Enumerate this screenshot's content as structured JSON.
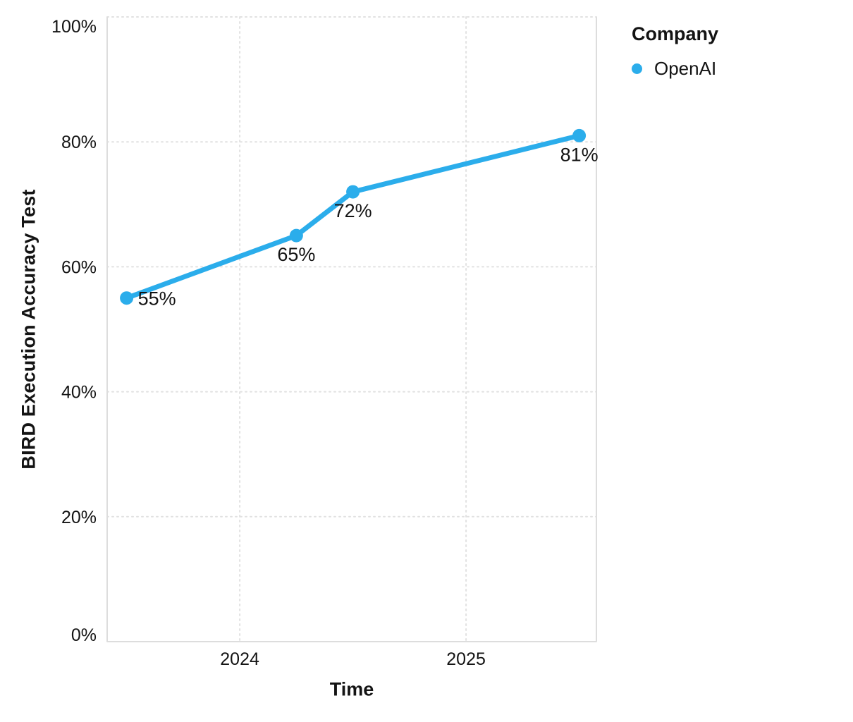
{
  "chart_data": {
    "type": "line",
    "title": "",
    "xlabel": "Time",
    "ylabel": "BIRD Execution Accuracy Test",
    "xlim": [
      2023.414,
      2025.576
    ],
    "ylim": [
      0,
      100
    ],
    "grid": "dotted",
    "x_ticks": [
      {
        "value": 2024,
        "label": "2024"
      },
      {
        "value": 2025,
        "label": "2025"
      }
    ],
    "y_ticks": [
      {
        "value": 0,
        "label": "0%"
      },
      {
        "value": 20,
        "label": "20%"
      },
      {
        "value": 40,
        "label": "40%"
      },
      {
        "value": 60,
        "label": "60%"
      },
      {
        "value": 80,
        "label": "80%"
      },
      {
        "value": 100,
        "label": "100%"
      }
    ],
    "series": [
      {
        "name": "OpenAI",
        "color": "#2badeb",
        "points": [
          {
            "x": 2023.5,
            "y": 55,
            "label": "55%",
            "label_placement": "right"
          },
          {
            "x": 2024.25,
            "y": 65,
            "label": "65%",
            "label_placement": "below"
          },
          {
            "x": 2024.5,
            "y": 72,
            "label": "72%",
            "label_placement": "below"
          },
          {
            "x": 2025.5,
            "y": 81,
            "label": "81%",
            "label_placement": "below"
          }
        ]
      }
    ],
    "legend": {
      "position": "top-right",
      "title": "Company",
      "entries": [
        {
          "label": "OpenAI",
          "color": "#2badeb"
        }
      ]
    },
    "colors": {
      "grid": "#e1e1e1",
      "border": "#dddddd",
      "text": "#141414"
    }
  }
}
